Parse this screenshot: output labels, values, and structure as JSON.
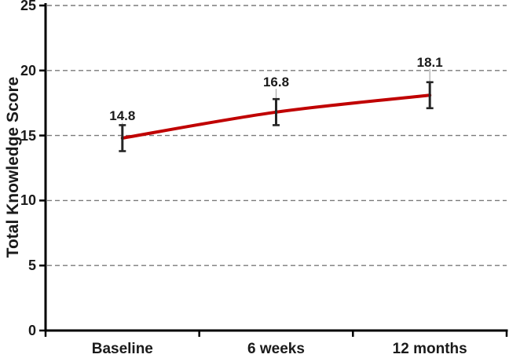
{
  "chart_data": {
    "type": "line",
    "title": "",
    "xlabel": "",
    "ylabel": "Total Knowledge Score",
    "categories": [
      "Baseline",
      "6 weeks",
      "12 months"
    ],
    "series": [
      {
        "name": "Total Knowledge Score",
        "values": [
          14.8,
          16.8,
          18.1
        ],
        "error": [
          1.0,
          1.0,
          1.0
        ],
        "color": "#C00000"
      }
    ],
    "data_labels": [
      "14.8",
      "16.8",
      "18.1"
    ],
    "ylim": [
      0,
      25
    ],
    "yticks": [
      0,
      5,
      10,
      15,
      20,
      25
    ],
    "ytick_labels": [
      "0",
      "5",
      "10",
      "15",
      "20",
      "25"
    ],
    "grid": "horizontal-dashed",
    "legend": "none",
    "line_style": "smooth",
    "error_bar_caps": true,
    "colors": {
      "line": "#C00000",
      "error_bar": "#262626",
      "gridline": "#7A7A7A",
      "axis": "#000000",
      "text": "#1A1A1A",
      "leader_line": "#A8A8A8",
      "background": "#FFFFFF"
    }
  }
}
